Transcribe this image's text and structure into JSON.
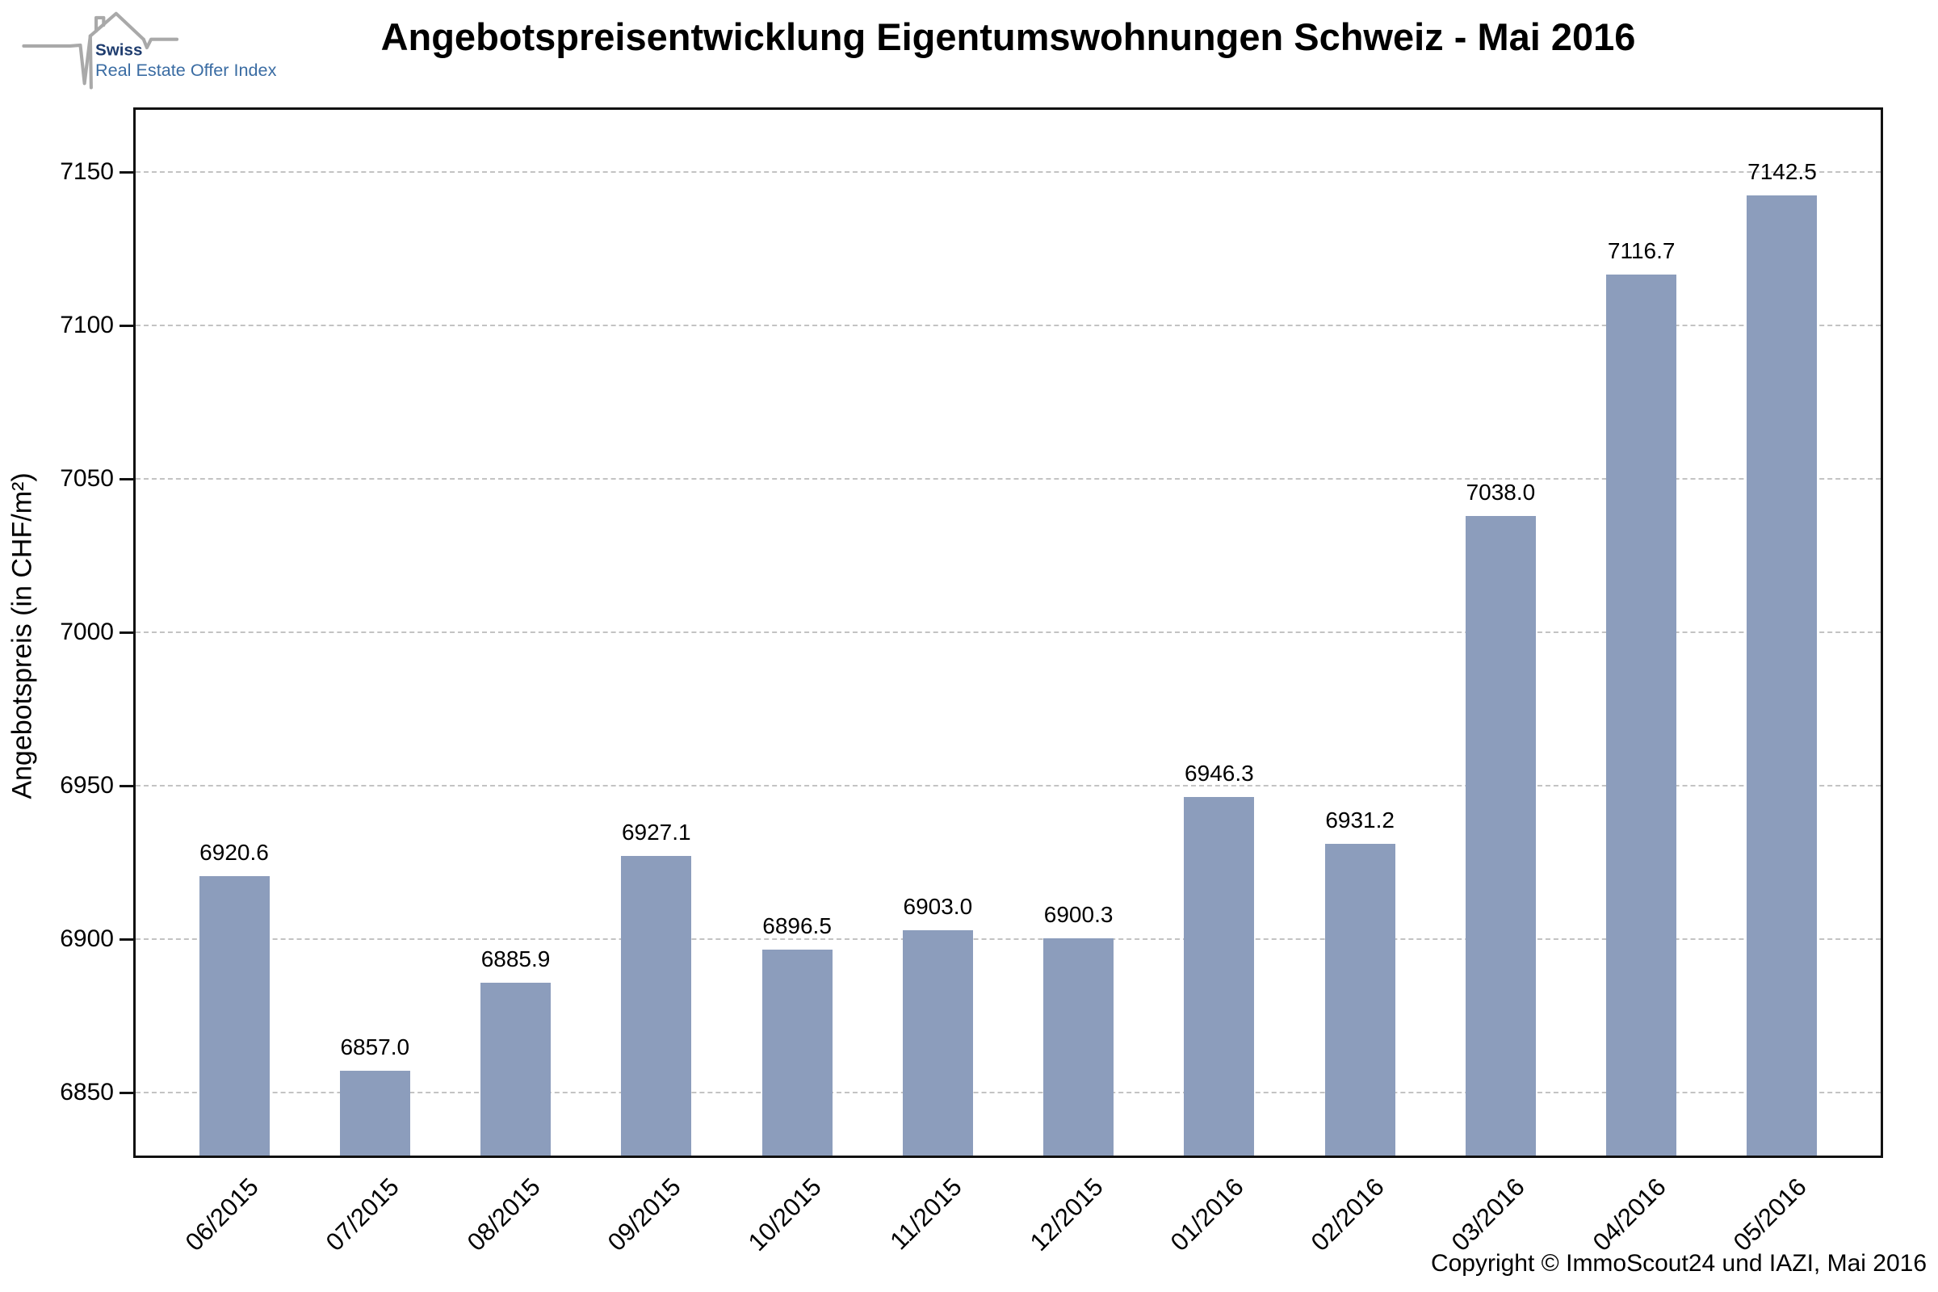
{
  "logo": {
    "brand": "Swiss",
    "subtitle": "Real Estate Offer Index",
    "brand_color": "#1e3c6e",
    "subtitle_color": "#3a6ca3",
    "line_color": "#a9a9a9"
  },
  "title": "Angebotspreisentwicklung Eigentumswohnungen Schweiz - Mai 2016",
  "footer": {
    "copyright": "Copyright © ImmoScout24 und IAZI, Mai 2016"
  },
  "chart_data": {
    "type": "bar",
    "title": "Angebotspreisentwicklung Eigentumswohnungen Schweiz - Mai 2016",
    "categories": [
      "06/2015",
      "07/2015",
      "08/2015",
      "09/2015",
      "10/2015",
      "11/2015",
      "12/2015",
      "01/2016",
      "02/2016",
      "03/2016",
      "04/2016",
      "05/2016"
    ],
    "values": [
      6920.6,
      6857.0,
      6885.9,
      6927.1,
      6896.5,
      6903.0,
      6900.3,
      6946.3,
      6931.2,
      7038.0,
      7116.7,
      7142.5
    ],
    "value_labels": [
      "6920.6",
      "6857.0",
      "6885.9",
      "6927.1",
      "6896.5",
      "6903.0",
      "6900.3",
      "6946.3",
      "6931.2",
      "7038.0",
      "7116.7",
      "7142.5"
    ],
    "xlabel": "",
    "ylabel": "Angebotspreis (in CHF/m²)",
    "yticks": [
      6850,
      6900,
      6950,
      7000,
      7050,
      7100,
      7150
    ],
    "ylim": [
      6828.7,
      7171.1
    ],
    "grid": "horizontal dashed",
    "legend": "none",
    "bar_color": "#8c9dbc",
    "gridline_color": "#c3c3c3",
    "axis_color": "#111111"
  }
}
